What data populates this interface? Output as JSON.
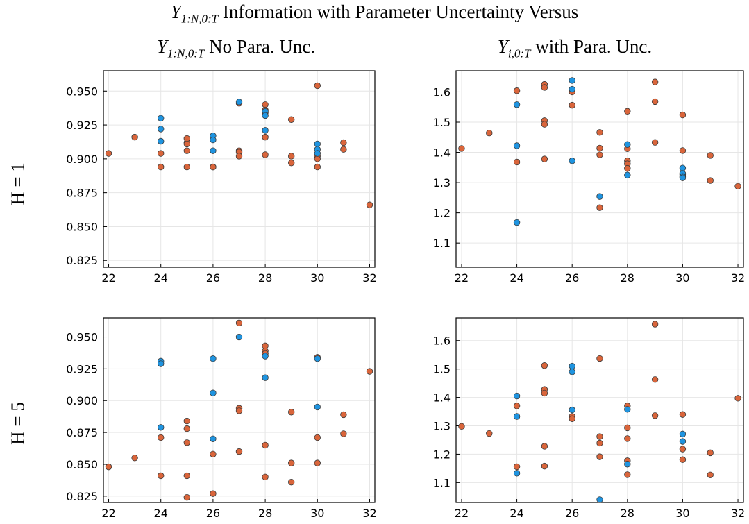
{
  "titles": {
    "super_title": "Information with Parameter Uncertainty Versus",
    "super_title_math": "Y",
    "super_title_math_sub": "1:N,0:T",
    "col_left_math": "Y",
    "col_left_math_sub": "1:N,0:T",
    "col_left": "No Para. Unc.",
    "col_right_math": "Y",
    "col_right_math_sub": "i,0:T",
    "col_right": "with Para. Unc.",
    "row_1": "H = 1",
    "row_2": "H = 5"
  },
  "colors": {
    "blue": "#1f94e0",
    "orange": "#d9653b",
    "edge": "#3a3a3a"
  },
  "chart_data": [
    {
      "type": "scatter",
      "name": "top-left",
      "xlim": [
        21.8,
        32.2
      ],
      "ylim": [
        0.82,
        0.965
      ],
      "xticks": [
        22,
        24,
        26,
        28,
        30,
        32
      ],
      "yticks": [
        0.825,
        0.85,
        0.875,
        0.9,
        0.925,
        0.95
      ],
      "ytick_labels": [
        "0.825",
        "0.850",
        "0.875",
        "0.900",
        "0.925",
        "0.950"
      ],
      "grid": true,
      "series": [
        {
          "color": "blue",
          "points": [
            [
              24,
              0.93
            ],
            [
              24,
              0.922
            ],
            [
              24,
              0.913
            ],
            [
              26,
              0.917
            ],
            [
              26,
              0.914
            ],
            [
              26,
              0.906
            ],
            [
              27,
              0.942
            ],
            [
              28,
              0.935
            ],
            [
              28,
              0.932
            ],
            [
              28,
              0.921
            ],
            [
              30,
              0.911
            ],
            [
              30,
              0.907
            ],
            [
              30,
              0.904
            ]
          ]
        },
        {
          "color": "orange",
          "points": [
            [
              22,
              0.904
            ],
            [
              23,
              0.916
            ],
            [
              24,
              0.904
            ],
            [
              24,
              0.894
            ],
            [
              25,
              0.915
            ],
            [
              25,
              0.912
            ],
            [
              25,
              0.911
            ],
            [
              25,
              0.906
            ],
            [
              25,
              0.894
            ],
            [
              26,
              0.894
            ],
            [
              26,
              0.894
            ],
            [
              27,
              0.941
            ],
            [
              27,
              0.906
            ],
            [
              27,
              0.905
            ],
            [
              27,
              0.902
            ],
            [
              28,
              0.94
            ],
            [
              28,
              0.936
            ],
            [
              28,
              0.934
            ],
            [
              28,
              0.916
            ],
            [
              28,
              0.903
            ],
            [
              29,
              0.929
            ],
            [
              29,
              0.902
            ],
            [
              29,
              0.897
            ],
            [
              30,
              0.954
            ],
            [
              30,
              0.902
            ],
            [
              30,
              0.9
            ],
            [
              30,
              0.894
            ],
            [
              31,
              0.912
            ],
            [
              31,
              0.907
            ],
            [
              32,
              0.866
            ]
          ]
        }
      ]
    },
    {
      "type": "scatter",
      "name": "top-right",
      "xlim": [
        21.8,
        32.2
      ],
      "ylim": [
        1.02,
        1.67
      ],
      "xticks": [
        22,
        24,
        26,
        28,
        30,
        32
      ],
      "yticks": [
        1.1,
        1.2,
        1.3,
        1.4,
        1.5,
        1.6
      ],
      "ytick_labels": [
        "1.1",
        "1.2",
        "1.3",
        "1.4",
        "1.5",
        "1.6"
      ],
      "grid": true,
      "series": [
        {
          "color": "blue",
          "points": [
            [
              24,
              1.558
            ],
            [
              24,
              1.422
            ],
            [
              24,
              1.168
            ],
            [
              26,
              1.638
            ],
            [
              26,
              1.609
            ],
            [
              26,
              1.372
            ],
            [
              27,
              1.254
            ],
            [
              28,
              1.426
            ],
            [
              28,
              1.325
            ],
            [
              30,
              1.348
            ],
            [
              30,
              1.33
            ],
            [
              30,
              1.32
            ],
            [
              30,
              1.316
            ]
          ]
        },
        {
          "color": "orange",
          "points": [
            [
              22,
              1.413
            ],
            [
              23,
              1.464
            ],
            [
              24,
              1.604
            ],
            [
              24,
              1.368
            ],
            [
              25,
              1.625
            ],
            [
              25,
              1.615
            ],
            [
              25,
              1.505
            ],
            [
              25,
              1.493
            ],
            [
              25,
              1.378
            ],
            [
              26,
              1.6
            ],
            [
              26,
              1.556
            ],
            [
              27,
              1.466
            ],
            [
              27,
              1.414
            ],
            [
              27,
              1.392
            ],
            [
              27,
              1.217
            ],
            [
              28,
              1.536
            ],
            [
              28,
              1.412
            ],
            [
              28,
              1.372
            ],
            [
              28,
              1.362
            ],
            [
              28,
              1.347
            ],
            [
              29,
              1.633
            ],
            [
              29,
              1.568
            ],
            [
              29,
              1.433
            ],
            [
              30,
              1.524
            ],
            [
              30,
              1.406
            ],
            [
              30,
              1.326
            ],
            [
              31,
              1.39
            ],
            [
              31,
              1.307
            ],
            [
              32,
              1.288
            ]
          ]
        }
      ]
    },
    {
      "type": "scatter",
      "name": "bottom-left",
      "xlim": [
        21.8,
        32.2
      ],
      "ylim": [
        0.82,
        0.965
      ],
      "xticks": [
        22,
        24,
        26,
        28,
        30,
        32
      ],
      "yticks": [
        0.825,
        0.85,
        0.875,
        0.9,
        0.925,
        0.95
      ],
      "ytick_labels": [
        "0.825",
        "0.850",
        "0.875",
        "0.900",
        "0.925",
        "0.950"
      ],
      "grid": true,
      "series": [
        {
          "color": "blue",
          "points": [
            [
              24,
              0.931
            ],
            [
              24,
              0.929
            ],
            [
              24,
              0.879
            ],
            [
              26,
              0.933
            ],
            [
              26,
              0.906
            ],
            [
              26,
              0.87
            ],
            [
              27,
              0.95
            ],
            [
              28,
              0.935
            ],
            [
              28,
              0.918
            ],
            [
              30,
              0.933
            ],
            [
              30,
              0.895
            ]
          ]
        },
        {
          "color": "orange",
          "points": [
            [
              22,
              0.848
            ],
            [
              23,
              0.855
            ],
            [
              24,
              0.871
            ],
            [
              24,
              0.841
            ],
            [
              25,
              0.884
            ],
            [
              25,
              0.878
            ],
            [
              25,
              0.867
            ],
            [
              25,
              0.841
            ],
            [
              25,
              0.824
            ],
            [
              26,
              0.858
            ],
            [
              26,
              0.827
            ],
            [
              27,
              0.961
            ],
            [
              27,
              0.894
            ],
            [
              27,
              0.892
            ],
            [
              27,
              0.86
            ],
            [
              28,
              0.943
            ],
            [
              28,
              0.939
            ],
            [
              28,
              0.937
            ],
            [
              28,
              0.865
            ],
            [
              28,
              0.84
            ],
            [
              29,
              0.891
            ],
            [
              29,
              0.851
            ],
            [
              29,
              0.836
            ],
            [
              30,
              0.934
            ],
            [
              30,
              0.871
            ],
            [
              30,
              0.851
            ],
            [
              31,
              0.889
            ],
            [
              31,
              0.874
            ],
            [
              32,
              0.923
            ]
          ]
        }
      ]
    },
    {
      "type": "scatter",
      "name": "bottom-right",
      "xlim": [
        21.8,
        32.2
      ],
      "ylim": [
        1.03,
        1.68
      ],
      "xticks": [
        22,
        24,
        26,
        28,
        30,
        32
      ],
      "yticks": [
        1.1,
        1.2,
        1.3,
        1.4,
        1.5,
        1.6
      ],
      "ytick_labels": [
        "1.1",
        "1.2",
        "1.3",
        "1.4",
        "1.5",
        "1.6"
      ],
      "grid": true,
      "series": [
        {
          "color": "blue",
          "points": [
            [
              24,
              1.405
            ],
            [
              24,
              1.333
            ],
            [
              24,
              1.133
            ],
            [
              26,
              1.51
            ],
            [
              26,
              1.49
            ],
            [
              26,
              1.356
            ],
            [
              27,
              1.04
            ],
            [
              28,
              1.358
            ],
            [
              28,
              1.165
            ],
            [
              30,
              1.271
            ],
            [
              30,
              1.245
            ]
          ]
        },
        {
          "color": "orange",
          "points": [
            [
              22,
              1.298
            ],
            [
              23,
              1.273
            ],
            [
              24,
              1.37
            ],
            [
              24,
              1.156
            ],
            [
              25,
              1.512
            ],
            [
              25,
              1.428
            ],
            [
              25,
              1.415
            ],
            [
              25,
              1.228
            ],
            [
              25,
              1.158
            ],
            [
              26,
              1.333
            ],
            [
              26,
              1.325
            ],
            [
              27,
              1.537
            ],
            [
              27,
              1.262
            ],
            [
              27,
              1.239
            ],
            [
              27,
              1.191
            ],
            [
              28,
              1.37
            ],
            [
              28,
              1.293
            ],
            [
              28,
              1.255
            ],
            [
              28,
              1.177
            ],
            [
              28,
              1.128
            ],
            [
              29,
              1.658
            ],
            [
              29,
              1.463
            ],
            [
              29,
              1.336
            ],
            [
              30,
              1.34
            ],
            [
              30,
              1.218
            ],
            [
              30,
              1.181
            ],
            [
              31,
              1.205
            ],
            [
              31,
              1.127
            ],
            [
              32,
              1.397
            ]
          ]
        }
      ]
    }
  ]
}
